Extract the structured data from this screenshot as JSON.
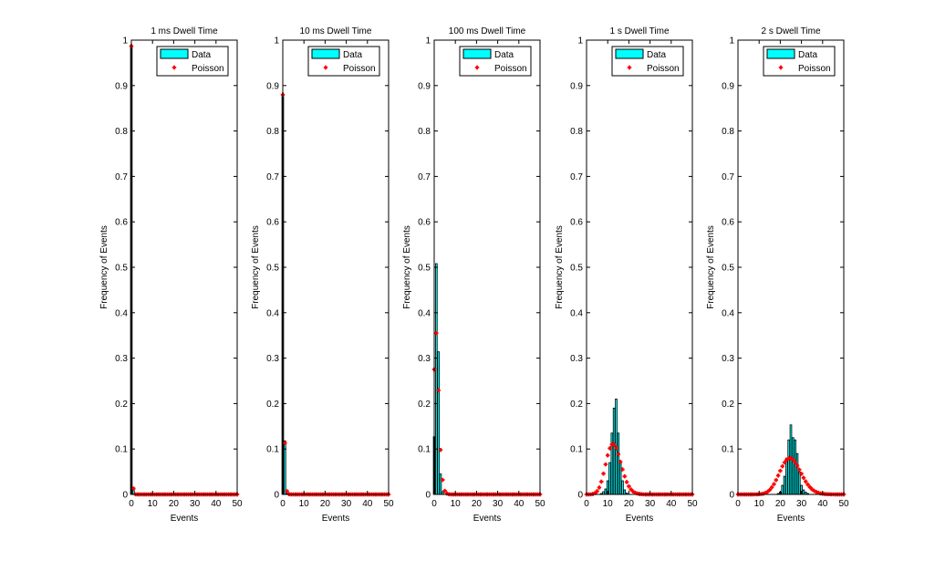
{
  "chart_data": [
    {
      "type": "bar",
      "title": "1 ms Dwell Time",
      "xlabel": "Events",
      "ylabel": "Frequency of Events",
      "xlim": [
        0,
        50
      ],
      "ylim": [
        0,
        1
      ],
      "xticks": [
        0,
        10,
        20,
        30,
        40,
        50
      ],
      "yticks": [
        0,
        0.1,
        0.2,
        0.3,
        0.4,
        0.5,
        0.6,
        0.7,
        0.8,
        0.9,
        1
      ],
      "legend": {
        "placement": "top-right",
        "entries": [
          "Data",
          "Poisson"
        ]
      },
      "series": [
        {
          "name": "Data",
          "kind": "bar",
          "color": "#00ffff",
          "x": [
            0,
            1
          ],
          "values": [
            0.985,
            0.015
          ]
        },
        {
          "name": "Poisson",
          "kind": "marker",
          "color": "#ff0000",
          "values": [
            0.987,
            0.013,
            0.0001,
            0,
            0,
            0,
            0,
            0,
            0,
            0,
            0,
            0,
            0,
            0,
            0,
            0,
            0,
            0,
            0,
            0,
            0,
            0,
            0,
            0,
            0,
            0,
            0,
            0,
            0,
            0,
            0,
            0,
            0,
            0,
            0,
            0,
            0,
            0,
            0,
            0,
            0,
            0,
            0,
            0,
            0,
            0,
            0,
            0,
            0,
            0,
            0
          ]
        }
      ]
    },
    {
      "type": "bar",
      "title": "10 ms Dwell Time",
      "xlabel": "Events",
      "ylabel": "Frequency of Events",
      "xlim": [
        0,
        50
      ],
      "ylim": [
        0,
        1
      ],
      "xticks": [
        0,
        10,
        20,
        30,
        40,
        50
      ],
      "yticks": [
        0,
        0.1,
        0.2,
        0.3,
        0.4,
        0.5,
        0.6,
        0.7,
        0.8,
        0.9,
        1
      ],
      "legend": {
        "placement": "top-right",
        "entries": [
          "Data",
          "Poisson"
        ]
      },
      "series": [
        {
          "name": "Data",
          "kind": "bar",
          "color": "#00ffff",
          "x": [
            0,
            1,
            2
          ],
          "values": [
            0.88,
            0.118,
            0.002
          ]
        },
        {
          "name": "Poisson",
          "kind": "marker",
          "color": "#ff0000",
          "values": [
            0.88,
            0.113,
            0.007,
            0.0003,
            0,
            0,
            0,
            0,
            0,
            0,
            0,
            0,
            0,
            0,
            0,
            0,
            0,
            0,
            0,
            0,
            0,
            0,
            0,
            0,
            0,
            0,
            0,
            0,
            0,
            0,
            0,
            0,
            0,
            0,
            0,
            0,
            0,
            0,
            0,
            0,
            0,
            0,
            0,
            0,
            0,
            0,
            0,
            0,
            0,
            0,
            0
          ]
        }
      ]
    },
    {
      "type": "bar",
      "title": "100 ms Dwell Time",
      "xlabel": "Events",
      "ylabel": "Frequency of Events",
      "xlim": [
        0,
        50
      ],
      "ylim": [
        0,
        1
      ],
      "xticks": [
        0,
        10,
        20,
        30,
        40,
        50
      ],
      "yticks": [
        0,
        0.1,
        0.2,
        0.3,
        0.4,
        0.5,
        0.6,
        0.7,
        0.8,
        0.9,
        1
      ],
      "legend": {
        "placement": "top-right",
        "entries": [
          "Data",
          "Poisson"
        ]
      },
      "series": [
        {
          "name": "Data",
          "kind": "bar",
          "color": "#00ffff",
          "x": [
            0,
            1,
            2,
            3,
            4
          ],
          "values": [
            0.127,
            0.508,
            0.314,
            0.045,
            0.006
          ]
        },
        {
          "name": "Poisson",
          "kind": "marker",
          "color": "#ff0000",
          "values": [
            0.275,
            0.355,
            0.229,
            0.098,
            0.032,
            0.008,
            0.002,
            0.0004,
            0,
            0,
            0,
            0,
            0,
            0,
            0,
            0,
            0,
            0,
            0,
            0,
            0,
            0,
            0,
            0,
            0,
            0,
            0,
            0,
            0,
            0,
            0,
            0,
            0,
            0,
            0,
            0,
            0,
            0,
            0,
            0,
            0,
            0,
            0,
            0,
            0,
            0,
            0,
            0,
            0,
            0,
            0
          ]
        }
      ]
    },
    {
      "type": "bar",
      "title": "1 s Dwell Time",
      "xlabel": "Events",
      "ylabel": "Frequency of Events",
      "xlim": [
        0,
        50
      ],
      "ylim": [
        0,
        1
      ],
      "xticks": [
        0,
        10,
        20,
        30,
        40,
        50
      ],
      "yticks": [
        0,
        0.1,
        0.2,
        0.3,
        0.4,
        0.5,
        0.6,
        0.7,
        0.8,
        0.9,
        1
      ],
      "legend": {
        "placement": "top-right",
        "entries": [
          "Data",
          "Poisson"
        ]
      },
      "series": [
        {
          "name": "Data",
          "kind": "bar",
          "color": "#00ffff",
          "x": [
            7,
            8,
            9,
            10,
            11,
            12,
            13,
            14,
            15,
            16,
            17,
            18,
            19
          ],
          "values": [
            0.002,
            0.006,
            0.012,
            0.03,
            0.07,
            0.135,
            0.19,
            0.21,
            0.135,
            0.07,
            0.03,
            0.01,
            0.003
          ]
        },
        {
          "name": "Poisson",
          "kind": "marker",
          "color": "#ff0000",
          "values": [
            0,
            0,
            0.0002,
            0.001,
            0.0029,
            0.0071,
            0.0151,
            0.0281,
            0.0457,
            0.0661,
            0.0859,
            0.1015,
            0.1099,
            0.1099,
            0.1021,
            0.0885,
            0.0719,
            0.055,
            0.0397,
            0.0272,
            0.0177,
            0.0109,
            0.0065,
            0.0037,
            0.002,
            0.001,
            0.0005,
            0.0002,
            0,
            0,
            0,
            0,
            0,
            0,
            0,
            0,
            0,
            0,
            0,
            0,
            0,
            0,
            0,
            0,
            0,
            0,
            0,
            0,
            0,
            0,
            0
          ]
        }
      ]
    },
    {
      "type": "bar",
      "title": "2 s Dwell Time",
      "xlabel": "Events",
      "ylabel": "Frequency of Events",
      "xlim": [
        0,
        50
      ],
      "ylim": [
        0,
        1
      ],
      "xticks": [
        0,
        10,
        20,
        30,
        40,
        50
      ],
      "yticks": [
        0,
        0.1,
        0.2,
        0.3,
        0.4,
        0.5,
        0.6,
        0.7,
        0.8,
        0.9,
        1
      ],
      "legend": {
        "placement": "top-right",
        "entries": [
          "Data",
          "Poisson"
        ]
      },
      "series": [
        {
          "name": "Data",
          "kind": "bar",
          "color": "#00ffff",
          "x": [
            19,
            20,
            21,
            22,
            23,
            24,
            25,
            26,
            27,
            28,
            29,
            30,
            31,
            32,
            33
          ],
          "values": [
            0.002,
            0.005,
            0.02,
            0.04,
            0.08,
            0.12,
            0.153,
            0.125,
            0.12,
            0.09,
            0.05,
            0.02,
            0.01,
            0.005,
            0.002
          ]
        },
        {
          "name": "Poisson",
          "kind": "marker",
          "color": "#ff0000",
          "values": [
            0,
            0,
            0,
            0,
            0,
            0,
            0,
            0,
            0.0001,
            0.0002,
            0.0004,
            0.0008,
            0.0017,
            0.0033,
            0.0059,
            0.0099,
            0.0155,
            0.0227,
            0.0316,
            0.0415,
            0.0519,
            0.0618,
            0.0702,
            0.0763,
            0.0795,
            0.0795,
            0.0765,
            0.0708,
            0.0632,
            0.0545,
            0.0454,
            0.0366,
            0.0286,
            0.0217,
            0.0159,
            0.0114,
            0.0079,
            0.0053,
            0.0035,
            0.0022,
            0.0014,
            0.0009,
            0.0005,
            0.0003,
            0.0002,
            0.0001,
            0,
            0,
            0,
            0,
            0
          ]
        }
      ]
    }
  ]
}
